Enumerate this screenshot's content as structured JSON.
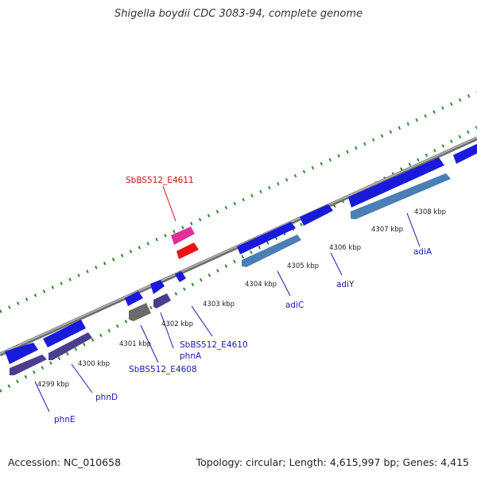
{
  "title": "Shigella boydii CDC 3083-94, complete genome",
  "footer": {
    "accession": "Accession: NC_010658",
    "stats": "Topology: circular; Length: 4,615,997 bp; Genes: 4,415"
  },
  "colors": {
    "backbone": "#8a8a8a",
    "ticks": "#2e8b2e",
    "gene_blue": "#1a1adc",
    "gene_purple": "#4a3d8e",
    "gene_steel": "#4a7eb4",
    "gene_gray": "#555555",
    "gene_pink": "#e0309a",
    "gene_red": "#ee1111",
    "label_blue": "#1a1aaa",
    "label_red": "#cc1111"
  },
  "kbp_labels": [
    "4299 kbp",
    "4300 kbp",
    "4301 kbp",
    "4302 kbp",
    "4303 kbp",
    "4304 kbp",
    "4305 kbp",
    "4306 kbp",
    "4307 kbp",
    "4308 kbp"
  ],
  "gene_labels": {
    "red": "SbBS512_E4611",
    "phnE": "phnE",
    "phnD": "phnD",
    "e4608": "SbBS512_E4608",
    "phnA": "phnA",
    "e4610": "SbBS512_E4610",
    "adiC": "adiC",
    "adiY": "adiY",
    "adiA": "adiA"
  }
}
